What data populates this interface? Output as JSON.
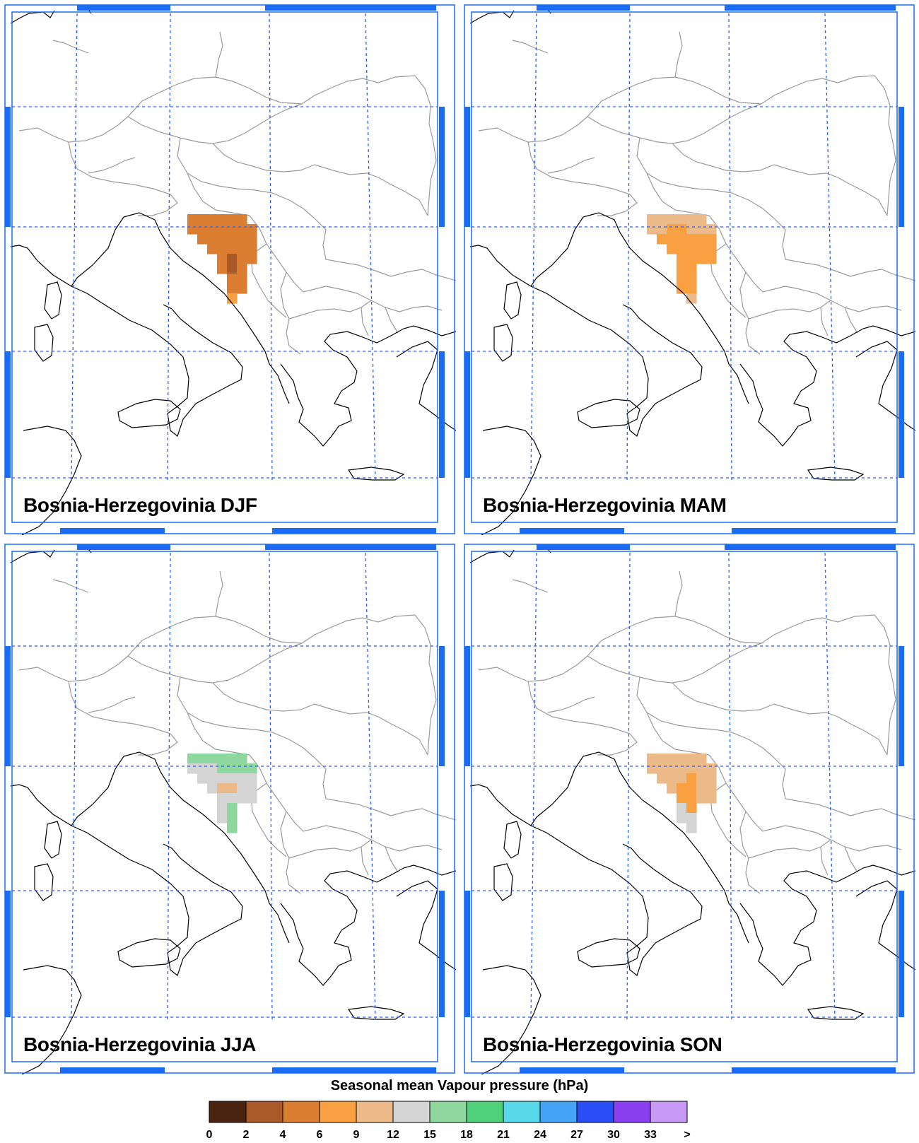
{
  "panels": [
    {
      "title": "Bosnia-Herzegovinia DJF",
      "season": "DJF"
    },
    {
      "title": "Bosnia-Herzegovinia MAM",
      "season": "MAM"
    },
    {
      "title": "Bosnia-Herzegovinia JJA",
      "season": "JJA"
    },
    {
      "title": "Bosnia-Herzegovinia SON",
      "season": "SON"
    }
  ],
  "legend": {
    "title": "Seasonal mean Vapour pressure (hPa)",
    "bins": [
      {
        "color": "#4a2410"
      },
      {
        "color": "#a85a28"
      },
      {
        "color": "#dc7e32"
      },
      {
        "color": "#f9a043"
      },
      {
        "color": "#ecb988"
      },
      {
        "color": "#d4d4d4"
      },
      {
        "color": "#8ed8a0"
      },
      {
        "color": "#50d07a"
      },
      {
        "color": "#58d8e8"
      },
      {
        "color": "#45a4f5"
      },
      {
        "color": "#2a4ef5"
      },
      {
        "color": "#8a40f0"
      },
      {
        "color": "#c89af5"
      }
    ],
    "tick_labels": [
      "0",
      "2",
      "4",
      "6",
      "9",
      "12",
      "15",
      "18",
      "21",
      "24",
      "27",
      "30",
      "33",
      ">"
    ]
  },
  "colors": {
    "frame_accent": "#1a6cf5",
    "graticule": "#2a5ef5",
    "coastline": "#000000",
    "border": "#9a9a9a"
  }
}
